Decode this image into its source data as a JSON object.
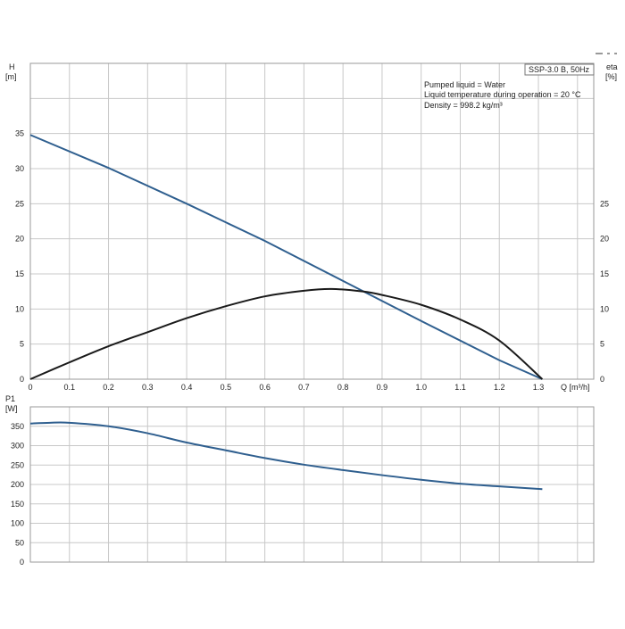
{
  "chart_data": [
    {
      "type": "line",
      "model_label": "SSP-3.0 B, 50Hz",
      "info_lines": [
        "Pumped liquid = Water",
        "Liquid temperature during operation = 20 °C",
        "Density = 998.2 kg/m³"
      ],
      "ylabel_left": "H",
      "ylabel_left_unit": "[m]",
      "ylabel_right": "eta",
      "ylabel_right_unit": "[%]",
      "xlabel": "Q [m³/h]",
      "xlim": [
        0,
        1.45
      ],
      "ylim": [
        0,
        45
      ],
      "x_ticks": [
        "0",
        "0.1",
        "0.2",
        "0.3",
        "0.4",
        "0.5",
        "0.6",
        "0.7",
        "0.8",
        "0.9",
        "1.0",
        "1.1",
        "1.2",
        "1.3"
      ],
      "y_ticks_left": [
        "0",
        "5",
        "10",
        "15",
        "20",
        "25",
        "30",
        "35"
      ],
      "y_ticks_right": [
        "0",
        "5",
        "10",
        "15",
        "20",
        "25"
      ],
      "series": [
        {
          "key": "head",
          "color": "#2f5f8f",
          "x": [
            0,
            0.2,
            0.4,
            0.6,
            0.8,
            1.0,
            1.2,
            1.31
          ],
          "y": [
            34.8,
            30.1,
            25.0,
            19.7,
            14.0,
            8.3,
            2.7,
            0
          ]
        },
        {
          "key": "efficiency",
          "color": "#1a1a1a",
          "x": [
            0,
            0.1,
            0.2,
            0.3,
            0.4,
            0.5,
            0.6,
            0.7,
            0.77,
            0.85,
            0.9,
            1.0,
            1.1,
            1.2,
            1.31
          ],
          "y": [
            0,
            2.4,
            4.7,
            6.7,
            8.7,
            10.4,
            11.8,
            12.6,
            12.85,
            12.5,
            12.0,
            10.6,
            8.5,
            5.5,
            0
          ]
        }
      ]
    },
    {
      "type": "line",
      "ylabel": "P1",
      "ylabel_unit": "[W]",
      "xlim": [
        0,
        1.45
      ],
      "ylim": [
        0,
        400
      ],
      "y_ticks": [
        "0",
        "50",
        "100",
        "150",
        "200",
        "250",
        "300",
        "350"
      ],
      "series": [
        {
          "key": "power",
          "color": "#2f5f8f",
          "x": [
            0,
            0.05,
            0.1,
            0.2,
            0.3,
            0.4,
            0.5,
            0.6,
            0.7,
            0.8,
            0.9,
            1.0,
            1.1,
            1.2,
            1.31
          ],
          "y": [
            357,
            359,
            359,
            350,
            332,
            308,
            288,
            268,
            251,
            237,
            224,
            212,
            202,
            195,
            188
          ]
        }
      ]
    }
  ]
}
